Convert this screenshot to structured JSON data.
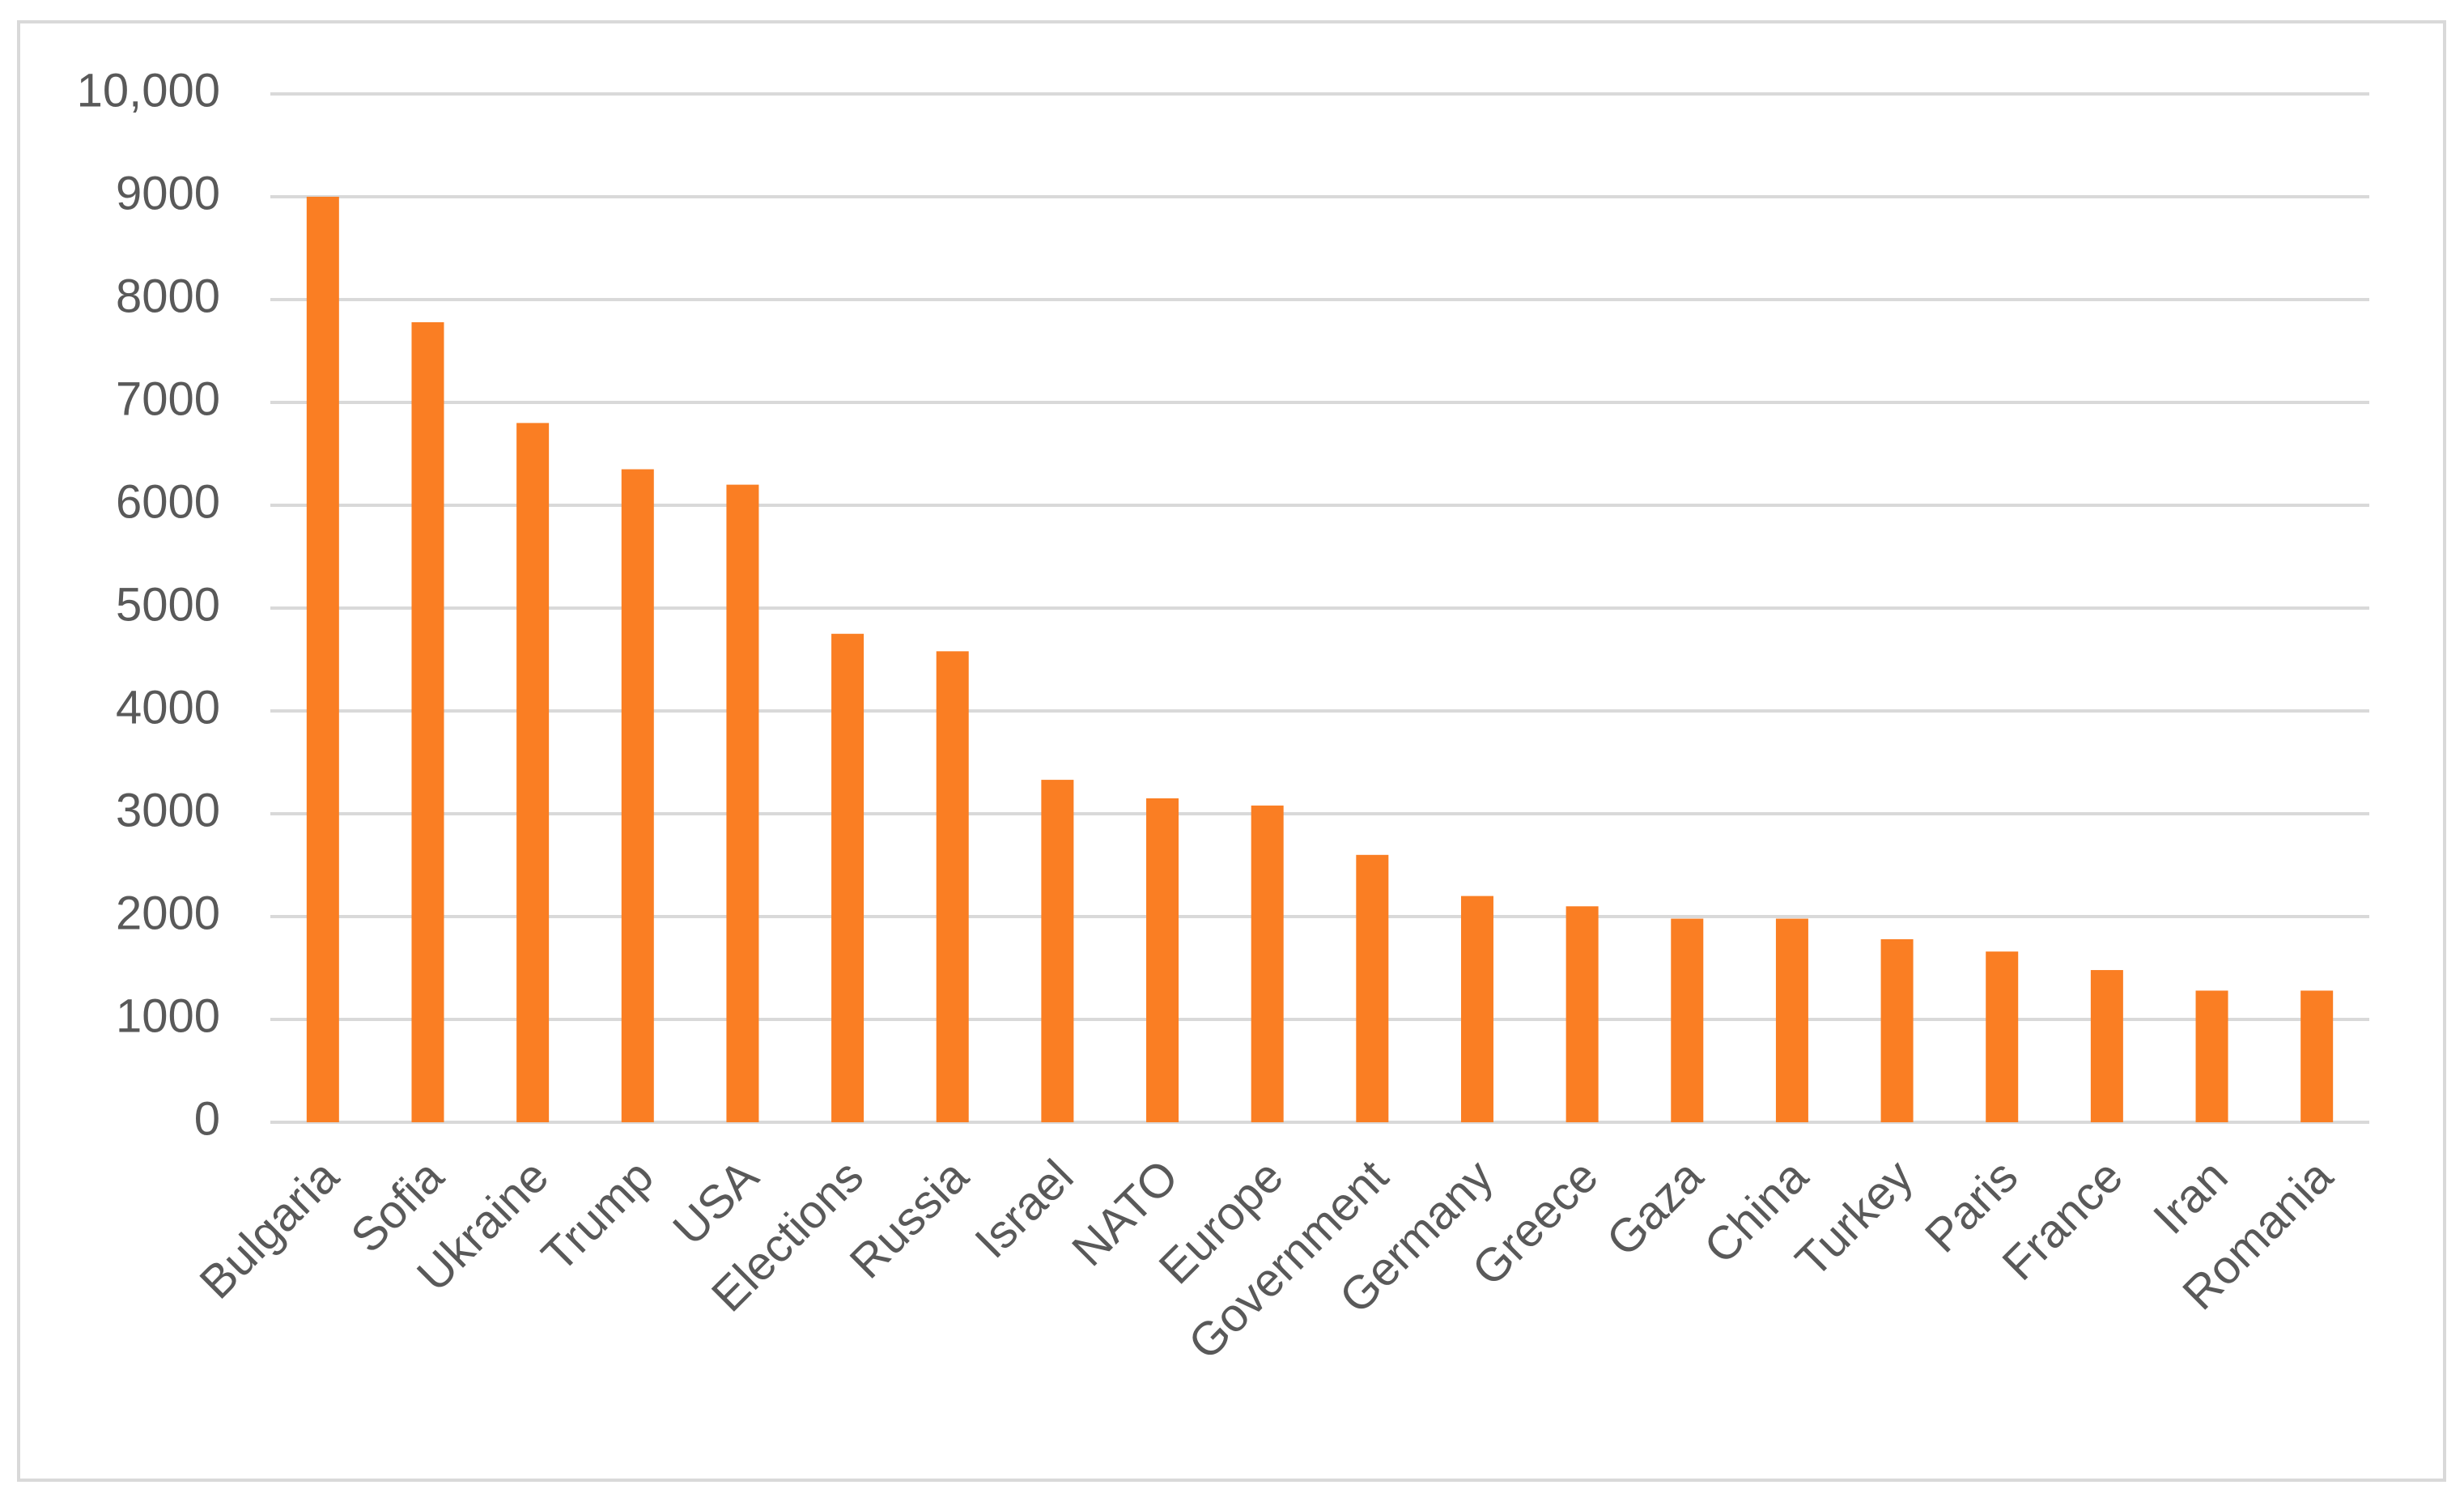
{
  "chart_data": {
    "type": "bar",
    "categories": [
      "Bulgaria",
      "Sofia",
      "Ukraine",
      "Trump",
      "USA",
      "Elections",
      "Russia",
      "Israel",
      "NATO",
      "Europe",
      "Government",
      "Germany",
      "Greece",
      "Gaza",
      "China",
      "Turkey",
      "Paris",
      "France",
      "Iran",
      "Romania"
    ],
    "values": [
      9000,
      7780,
      6800,
      6350,
      6200,
      4750,
      4580,
      3330,
      3150,
      3080,
      2600,
      2200,
      2100,
      1980,
      1980,
      1780,
      1660,
      1480,
      1280,
      1280
    ],
    "color": "#fa7e23",
    "ylim": [
      0,
      10000
    ],
    "yticks": [
      0,
      1000,
      2000,
      3000,
      4000,
      5000,
      6000,
      7000,
      8000,
      9000,
      {
        "value": 10000,
        "label": "10,000"
      }
    ],
    "grid": true
  }
}
